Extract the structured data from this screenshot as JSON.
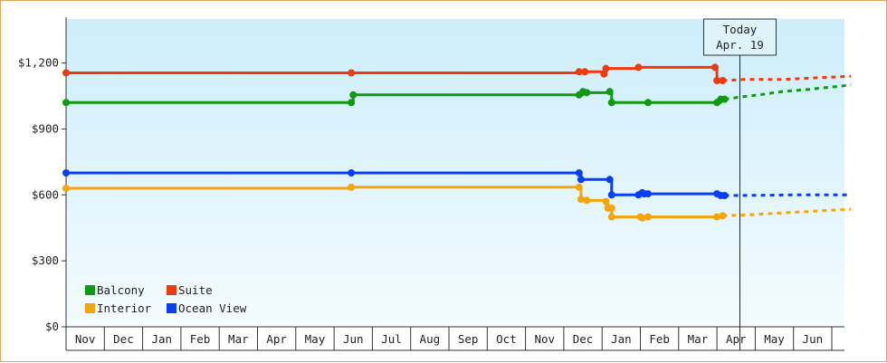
{
  "chart_data": {
    "type": "line",
    "ylim": [
      0,
      1400
    ],
    "y_ticks": [
      {
        "value": 0,
        "label": "$0"
      },
      {
        "value": 300,
        "label": "$300"
      },
      {
        "value": 600,
        "label": "$600"
      },
      {
        "value": 900,
        "label": "$900"
      },
      {
        "value": 1200,
        "label": "$1,200"
      }
    ],
    "months": [
      "Nov",
      "Dec",
      "Jan",
      "Feb",
      "Mar",
      "Apr",
      "May",
      "Jun",
      "Jul",
      "Aug",
      "Sep",
      "Oct",
      "Nov",
      "Dec",
      "Jan",
      "Feb",
      "Mar",
      "Apr",
      "May",
      "Jun"
    ],
    "today_index": 17.6,
    "today_label_1": "Today",
    "today_label_2": "Apr. 19",
    "legend_position": "bottom-left",
    "series": [
      {
        "name": "Suite",
        "color": "#ee3a10",
        "points": [
          [
            0,
            1155
          ],
          [
            7.45,
            1155
          ],
          [
            13.4,
            1160
          ],
          [
            13.55,
            1160
          ],
          [
            14.05,
            1150
          ],
          [
            14.1,
            1175
          ],
          [
            14.95,
            1180
          ],
          [
            16.95,
            1180
          ],
          [
            17.0,
            1120
          ],
          [
            17.15,
            1120
          ]
        ],
        "forecast": [
          [
            17.15,
            1120
          ],
          [
            17.7,
            1125
          ],
          [
            18.7,
            1125
          ],
          [
            19.3,
            1130
          ],
          [
            20.5,
            1140
          ]
        ]
      },
      {
        "name": "Balcony",
        "color": "#109a10",
        "points": [
          [
            0,
            1020
          ],
          [
            7.45,
            1020
          ],
          [
            7.5,
            1055
          ],
          [
            13.4,
            1055
          ],
          [
            13.5,
            1070
          ],
          [
            13.6,
            1065
          ],
          [
            14.2,
            1070
          ],
          [
            14.25,
            1020
          ],
          [
            15.2,
            1020
          ],
          [
            17.0,
            1020
          ],
          [
            17.1,
            1035
          ],
          [
            17.2,
            1035
          ]
        ],
        "forecast": [
          [
            17.2,
            1035
          ],
          [
            17.6,
            1045
          ],
          [
            18.1,
            1055
          ],
          [
            18.7,
            1070
          ],
          [
            19.4,
            1080
          ],
          [
            20.5,
            1100
          ]
        ]
      },
      {
        "name": "Ocean View",
        "color": "#0a3ef5",
        "points": [
          [
            0,
            700
          ],
          [
            7.45,
            700
          ],
          [
            13.4,
            700
          ],
          [
            13.45,
            670
          ],
          [
            14.2,
            670
          ],
          [
            14.25,
            600
          ],
          [
            14.95,
            600
          ],
          [
            15.05,
            610
          ],
          [
            15.1,
            605
          ],
          [
            15.2,
            605
          ],
          [
            17.0,
            605
          ],
          [
            17.1,
            597
          ],
          [
            17.2,
            597
          ]
        ],
        "forecast": [
          [
            17.2,
            597
          ],
          [
            18.0,
            598
          ],
          [
            19.0,
            600
          ],
          [
            20.5,
            600
          ]
        ]
      },
      {
        "name": "Interior",
        "color": "#f5a50a",
        "points": [
          [
            0,
            630
          ],
          [
            7.45,
            635
          ],
          [
            13.4,
            635
          ],
          [
            13.45,
            580
          ],
          [
            13.6,
            575
          ],
          [
            14.1,
            570
          ],
          [
            14.15,
            540
          ],
          [
            14.25,
            540
          ],
          [
            14.25,
            500
          ],
          [
            15.0,
            500
          ],
          [
            15.05,
            495
          ],
          [
            15.2,
            500
          ],
          [
            17.0,
            500
          ],
          [
            17.15,
            505
          ]
        ],
        "forecast": [
          [
            17.15,
            505
          ],
          [
            17.9,
            510
          ],
          [
            18.9,
            520
          ],
          [
            20.5,
            535
          ]
        ]
      }
    ],
    "legend": [
      {
        "name": "Balcony",
        "color": "#109a10"
      },
      {
        "name": "Suite",
        "color": "#ee3a10"
      },
      {
        "name": "Interior",
        "color": "#f5a50a"
      },
      {
        "name": "Ocean View",
        "color": "#0a3ef5"
      }
    ]
  }
}
